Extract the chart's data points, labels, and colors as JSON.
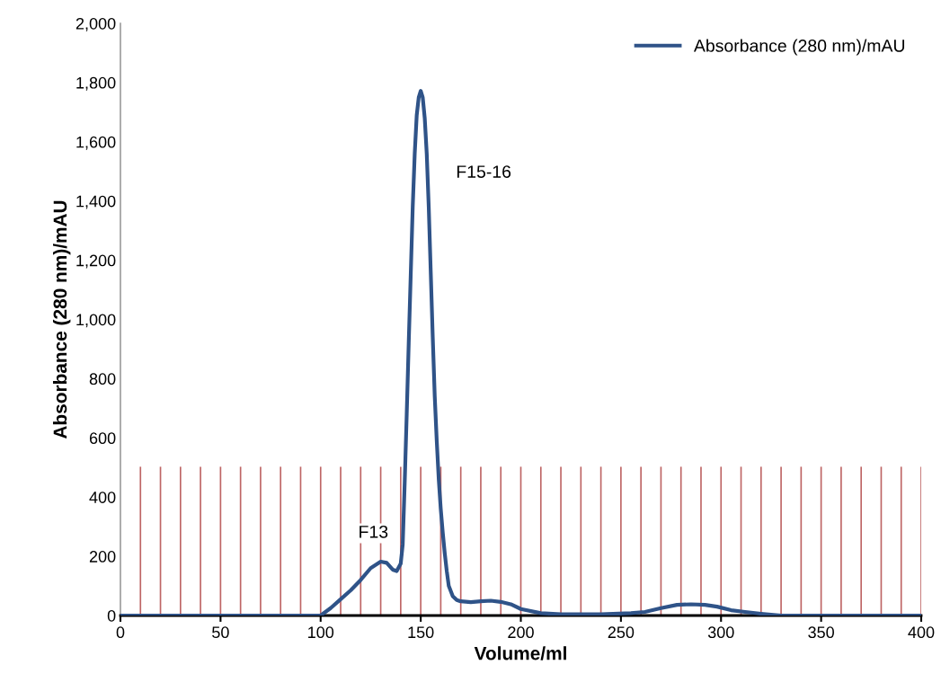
{
  "chart_data": {
    "type": "line",
    "xlabel": "Volume/ml",
    "ylabel": "Absorbance (280 nm)/mAU",
    "xlim": [
      0,
      400
    ],
    "xticks": [
      0,
      50,
      100,
      150,
      200,
      250,
      300,
      350,
      400
    ],
    "ylim": [
      0,
      2000
    ],
    "yticks": [
      {
        "value": 0,
        "label": "0"
      },
      {
        "value": 200,
        "label": "200"
      },
      {
        "value": 400,
        "label": "400"
      },
      {
        "value": 600,
        "label": "600"
      },
      {
        "value": 800,
        "label": "800"
      },
      {
        "value": 1000,
        "label": "1,000"
      },
      {
        "value": 1200,
        "label": "1,200"
      },
      {
        "value": 1400,
        "label": "1,400"
      },
      {
        "value": 1600,
        "label": "1,600"
      },
      {
        "value": 1800,
        "label": "1,800"
      },
      {
        "value": 2000,
        "label": "2,000"
      }
    ],
    "grid": false,
    "legend": "top right",
    "marker": "none",
    "line_style": "solid",
    "series": [
      {
        "name": "Absorbance (280 nm)/mAU",
        "color": "#2f5388",
        "x": [
          0,
          50,
          100,
          105,
          110,
          115,
          120,
          125,
          130,
          133,
          136,
          138,
          140,
          141,
          142,
          143,
          144,
          145,
          146,
          147,
          148,
          149,
          150,
          151,
          152,
          153,
          154,
          155,
          156,
          157,
          158,
          159,
          160,
          161,
          162,
          163,
          164,
          166,
          168,
          170,
          175,
          180,
          185,
          190,
          195,
          200,
          210,
          220,
          240,
          255,
          262,
          270,
          278,
          285,
          292,
          298,
          305,
          312,
          320,
          330,
          350,
          400
        ],
        "values": [
          0,
          0,
          0,
          25,
          55,
          85,
          120,
          160,
          182,
          178,
          155,
          150,
          175,
          240,
          450,
          680,
          920,
          1150,
          1380,
          1560,
          1690,
          1750,
          1772,
          1750,
          1680,
          1560,
          1380,
          1160,
          940,
          740,
          590,
          460,
          360,
          280,
          210,
          150,
          100,
          65,
          52,
          48,
          45,
          48,
          50,
          46,
          38,
          22,
          8,
          4,
          4,
          8,
          12,
          25,
          36,
          38,
          36,
          30,
          18,
          12,
          6,
          0,
          0,
          0
        ]
      }
    ],
    "ref_lines": [
      {
        "axis": "x",
        "value": 10,
        "color": "#a83232"
      },
      {
        "axis": "x",
        "value": 20,
        "color": "#a83232"
      },
      {
        "axis": "x",
        "value": 30,
        "color": "#a83232"
      },
      {
        "axis": "x",
        "value": 40,
        "color": "#a83232"
      },
      {
        "axis": "x",
        "value": 50,
        "color": "#a83232"
      },
      {
        "axis": "x",
        "value": 60,
        "color": "#a83232"
      },
      {
        "axis": "x",
        "value": 70,
        "color": "#a83232"
      },
      {
        "axis": "x",
        "value": 80,
        "color": "#a83232"
      },
      {
        "axis": "x",
        "value": 90,
        "color": "#a83232"
      },
      {
        "axis": "x",
        "value": 100,
        "color": "#a83232"
      },
      {
        "axis": "x",
        "value": 110,
        "color": "#a83232"
      },
      {
        "axis": "x",
        "value": 120,
        "color": "#a83232"
      },
      {
        "axis": "x",
        "value": 130,
        "color": "#a83232"
      },
      {
        "axis": "x",
        "value": 140,
        "color": "#a83232"
      },
      {
        "axis": "x",
        "value": 150,
        "color": "#a83232"
      },
      {
        "axis": "x",
        "value": 160,
        "color": "#a83232"
      },
      {
        "axis": "x",
        "value": 170,
        "color": "#a83232"
      },
      {
        "axis": "x",
        "value": 180,
        "color": "#a83232"
      },
      {
        "axis": "x",
        "value": 190,
        "color": "#a83232"
      },
      {
        "axis": "x",
        "value": 200,
        "color": "#a83232"
      },
      {
        "axis": "x",
        "value": 210,
        "color": "#a83232"
      },
      {
        "axis": "x",
        "value": 220,
        "color": "#a83232"
      },
      {
        "axis": "x",
        "value": 230,
        "color": "#a83232"
      },
      {
        "axis": "x",
        "value": 240,
        "color": "#a83232"
      },
      {
        "axis": "x",
        "value": 250,
        "color": "#a83232"
      },
      {
        "axis": "x",
        "value": 260,
        "color": "#a83232"
      },
      {
        "axis": "x",
        "value": 270,
        "color": "#a83232"
      },
      {
        "axis": "x",
        "value": 280,
        "color": "#a83232"
      },
      {
        "axis": "x",
        "value": 290,
        "color": "#a83232"
      },
      {
        "axis": "x",
        "value": 300,
        "color": "#a83232"
      },
      {
        "axis": "x",
        "value": 310,
        "color": "#a83232"
      },
      {
        "axis": "x",
        "value": 320,
        "color": "#a83232"
      },
      {
        "axis": "x",
        "value": 330,
        "color": "#a83232"
      },
      {
        "axis": "x",
        "value": 340,
        "color": "#a83232"
      },
      {
        "axis": "x",
        "value": 350,
        "color": "#a83232"
      },
      {
        "axis": "x",
        "value": 360,
        "color": "#a83232"
      },
      {
        "axis": "x",
        "value": 370,
        "color": "#a83232"
      },
      {
        "axis": "x",
        "value": 380,
        "color": "#a83232"
      },
      {
        "axis": "x",
        "value": 390,
        "color": "#a83232"
      },
      {
        "axis": "x",
        "value": 400,
        "color": "#a83232"
      }
    ],
    "annotations": [
      {
        "text": "F13",
        "x": 130,
        "y": 185
      },
      "F15-16"
    ]
  }
}
